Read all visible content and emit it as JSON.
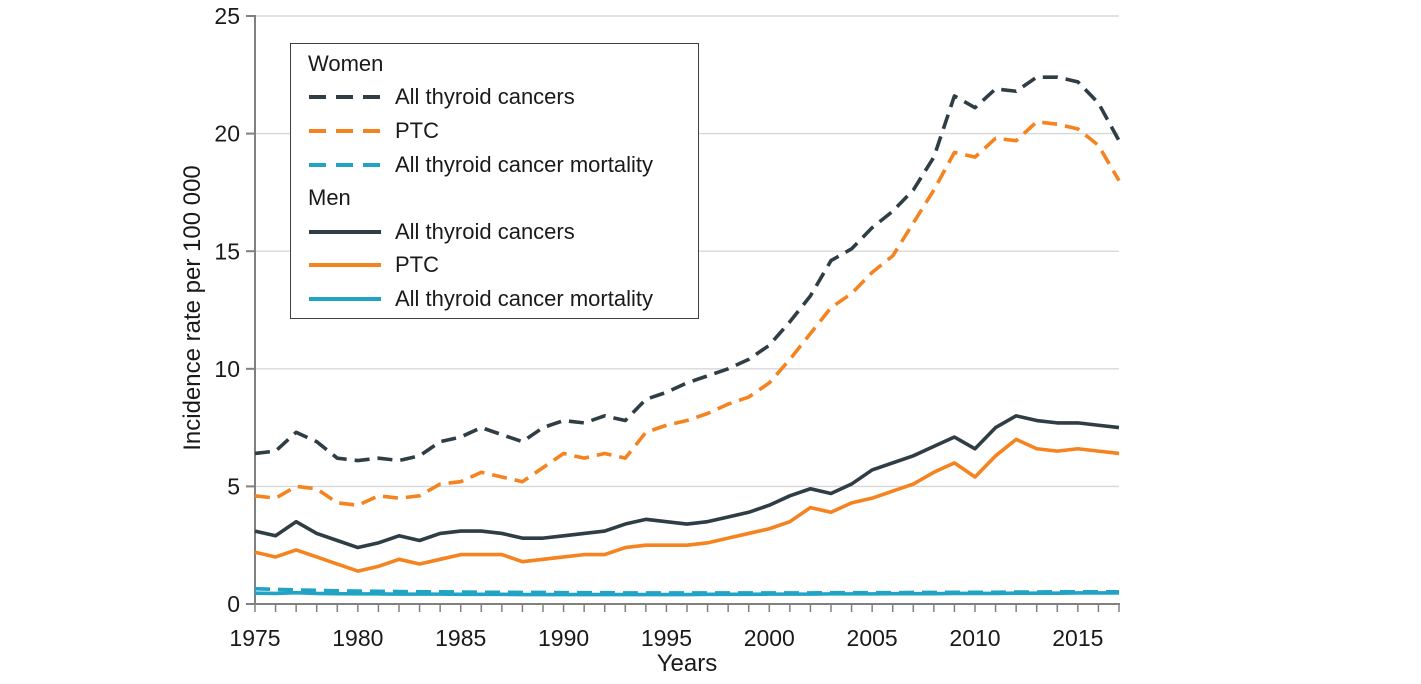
{
  "figure": {
    "y_axis_label": "Incidence rate per 100 000",
    "x_axis_label": "Years",
    "y_ticks": [
      0,
      5,
      10,
      15,
      20,
      25
    ],
    "x_tick_labels": [
      1975,
      1980,
      1985,
      1990,
      1995,
      2000,
      2005,
      2010,
      2015
    ]
  },
  "colors": {
    "dark": "#2f3e45",
    "orange": "#f5831f",
    "teal": "#20a3c5",
    "grid": "#d8d8d8",
    "axis": "#808080",
    "text": "#1a1a1a"
  },
  "legend": {
    "groups": [
      {
        "label": "Women",
        "items": [
          {
            "label": "All thyroid cancers",
            "style": "dashed",
            "color": "dark"
          },
          {
            "label": "PTC",
            "style": "dashed",
            "color": "orange"
          },
          {
            "label": "All thyroid cancer mortality",
            "style": "dashed",
            "color": "teal"
          }
        ]
      },
      {
        "label": "Men",
        "items": [
          {
            "label": "All thyroid cancers",
            "style": "solid",
            "color": "dark"
          },
          {
            "label": "PTC",
            "style": "solid",
            "color": "orange"
          },
          {
            "label": "All thyroid cancer mortality",
            "style": "solid",
            "color": "teal"
          }
        ]
      }
    ]
  },
  "chart_data": {
    "type": "line",
    "title": "",
    "xlabel": "Years",
    "ylabel": "Incidence rate per 100 000",
    "xlim": [
      1975,
      2017
    ],
    "ylim": [
      0,
      25
    ],
    "grid": "horizontal",
    "legend_position": "upper-left-inside",
    "x": [
      1975,
      1976,
      1977,
      1978,
      1979,
      1980,
      1981,
      1982,
      1983,
      1984,
      1985,
      1986,
      1987,
      1988,
      1989,
      1990,
      1991,
      1992,
      1993,
      1994,
      1995,
      1996,
      1997,
      1998,
      1999,
      2000,
      2001,
      2002,
      2003,
      2004,
      2005,
      2006,
      2007,
      2008,
      2009,
      2010,
      2011,
      2012,
      2013,
      2014,
      2015,
      2016,
      2017
    ],
    "series": [
      {
        "id": "women-all-thyroid-cancers",
        "name": "Women — All thyroid cancers",
        "style": "dashed",
        "color": "dark",
        "values": [
          6.4,
          6.5,
          7.3,
          6.9,
          6.2,
          6.1,
          6.2,
          6.1,
          6.3,
          6.9,
          7.1,
          7.5,
          7.2,
          6.9,
          7.5,
          7.8,
          7.7,
          8.0,
          7.8,
          8.7,
          9.0,
          9.4,
          9.7,
          10.0,
          10.4,
          11.0,
          12.0,
          13.1,
          14.6,
          15.1,
          16.0,
          16.7,
          17.6,
          19.0,
          21.6,
          21.1,
          21.9,
          21.8,
          22.4,
          22.4,
          22.2,
          21.3,
          19.7
        ]
      },
      {
        "id": "women-ptc",
        "name": "Women — PTC",
        "style": "dashed",
        "color": "orange",
        "values": [
          4.6,
          4.5,
          5.0,
          4.9,
          4.3,
          4.2,
          4.6,
          4.5,
          4.6,
          5.1,
          5.2,
          5.6,
          5.4,
          5.2,
          5.8,
          6.4,
          6.2,
          6.4,
          6.2,
          7.3,
          7.6,
          7.8,
          8.1,
          8.5,
          8.8,
          9.4,
          10.4,
          11.5,
          12.6,
          13.2,
          14.1,
          14.8,
          16.2,
          17.6,
          19.2,
          19.0,
          19.8,
          19.7,
          20.5,
          20.4,
          20.2,
          19.5,
          18.0
        ]
      },
      {
        "id": "women-mortality",
        "name": "Women — All thyroid cancer mortality",
        "style": "dashed",
        "color": "teal",
        "values": [
          0.65,
          0.62,
          0.6,
          0.58,
          0.56,
          0.55,
          0.54,
          0.53,
          0.52,
          0.52,
          0.51,
          0.5,
          0.5,
          0.49,
          0.49,
          0.48,
          0.48,
          0.48,
          0.47,
          0.47,
          0.47,
          0.47,
          0.47,
          0.47,
          0.47,
          0.47,
          0.47,
          0.47,
          0.48,
          0.48,
          0.48,
          0.48,
          0.49,
          0.49,
          0.5,
          0.5,
          0.5,
          0.51,
          0.51,
          0.52,
          0.52,
          0.52,
          0.52
        ]
      },
      {
        "id": "men-all-thyroid-cancers",
        "name": "Men — All thyroid cancers",
        "style": "solid",
        "color": "dark",
        "values": [
          3.1,
          2.9,
          3.5,
          3.0,
          2.7,
          2.4,
          2.6,
          2.9,
          2.7,
          3.0,
          3.1,
          3.1,
          3.0,
          2.8,
          2.8,
          2.9,
          3.0,
          3.1,
          3.4,
          3.6,
          3.5,
          3.4,
          3.5,
          3.7,
          3.9,
          4.2,
          4.6,
          4.9,
          4.7,
          5.1,
          5.7,
          6.0,
          6.3,
          6.7,
          7.1,
          6.6,
          7.5,
          8.0,
          7.8,
          7.7,
          7.7,
          7.6,
          7.5
        ]
      },
      {
        "id": "men-ptc",
        "name": "Men — PTC",
        "style": "solid",
        "color": "orange",
        "values": [
          2.2,
          2.0,
          2.3,
          2.0,
          1.7,
          1.4,
          1.6,
          1.9,
          1.7,
          1.9,
          2.1,
          2.1,
          2.1,
          1.8,
          1.9,
          2.0,
          2.1,
          2.1,
          2.4,
          2.5,
          2.5,
          2.5,
          2.6,
          2.8,
          3.0,
          3.2,
          3.5,
          4.1,
          3.9,
          4.3,
          4.5,
          4.8,
          5.1,
          5.6,
          6.0,
          5.4,
          6.3,
          7.0,
          6.6,
          6.5,
          6.6,
          6.5,
          6.4
        ]
      },
      {
        "id": "men-mortality",
        "name": "Men — All thyroid cancer mortality",
        "style": "solid",
        "color": "teal",
        "values": [
          0.46,
          0.45,
          0.48,
          0.45,
          0.44,
          0.43,
          0.43,
          0.42,
          0.42,
          0.42,
          0.41,
          0.41,
          0.41,
          0.4,
          0.4,
          0.4,
          0.4,
          0.4,
          0.4,
          0.4,
          0.4,
          0.4,
          0.41,
          0.41,
          0.41,
          0.42,
          0.42,
          0.42,
          0.43,
          0.43,
          0.43,
          0.44,
          0.44,
          0.44,
          0.45,
          0.45,
          0.45,
          0.46,
          0.46,
          0.46,
          0.47,
          0.47,
          0.47
        ]
      }
    ]
  }
}
